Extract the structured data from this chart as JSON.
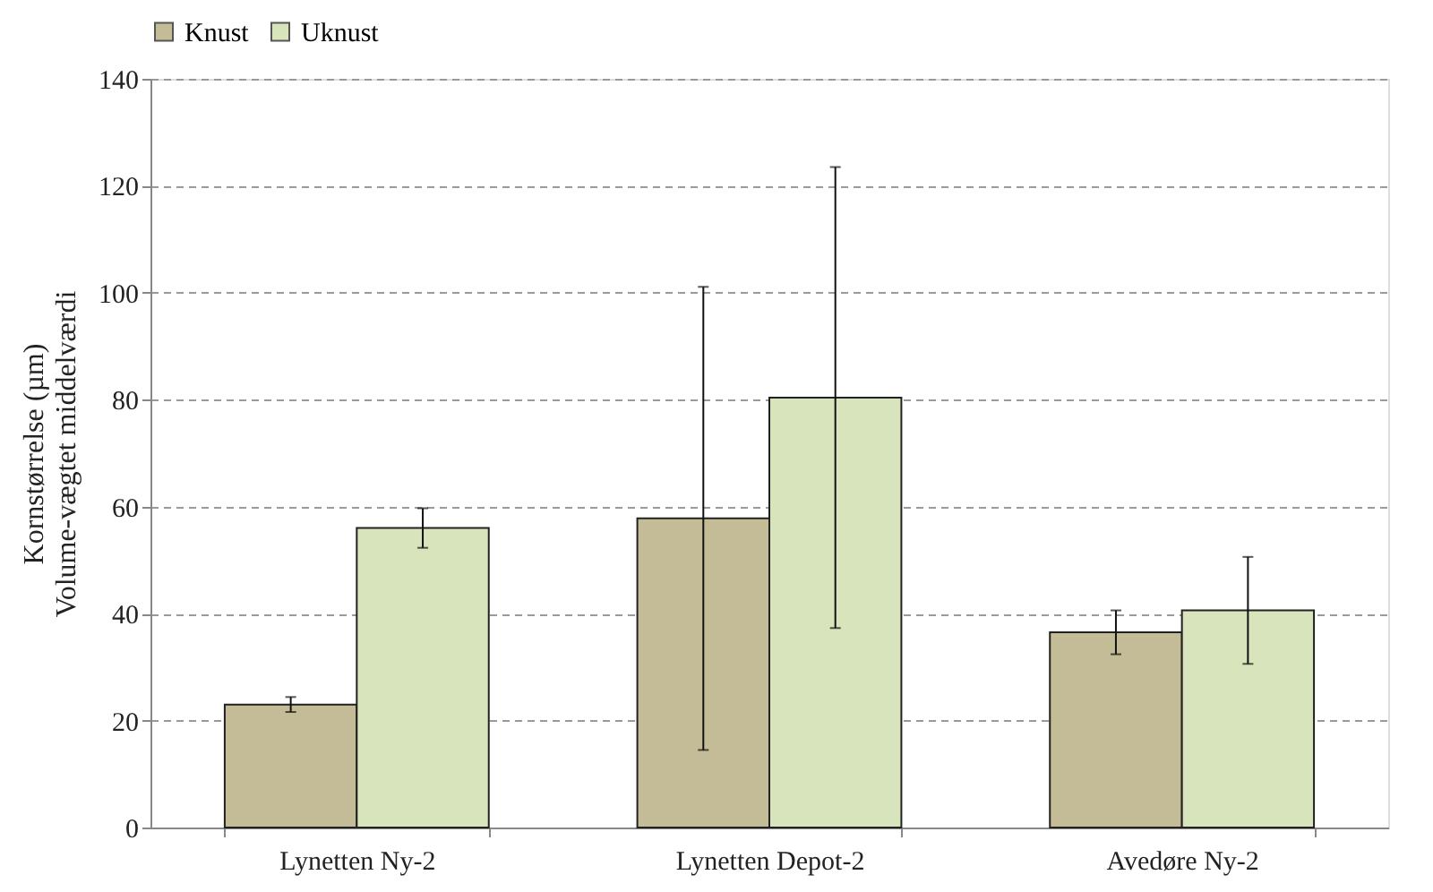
{
  "chart_data": {
    "type": "bar",
    "ylabel": "Kornstørrelse (µm)\nVolume-vægtet middelværdi",
    "categories": [
      "Lynetten Ny-2",
      "Lynetten Depot-2",
      "Avedøre Ny-2"
    ],
    "series": [
      {
        "name": "Knust",
        "color": "#c4bc96",
        "values": [
          23,
          57.8,
          36.5
        ],
        "errors": [
          1.4,
          43.3,
          4.1
        ]
      },
      {
        "name": "Uknust",
        "color": "#d7e4bc",
        "values": [
          56,
          80.4,
          40.6
        ],
        "errors": [
          3.7,
          43.1,
          10
        ]
      }
    ],
    "ylim": [
      0,
      140
    ],
    "yticks": [
      0,
      20,
      40,
      60,
      80,
      100,
      120,
      140
    ],
    "grid": "y",
    "legend": "top"
  }
}
